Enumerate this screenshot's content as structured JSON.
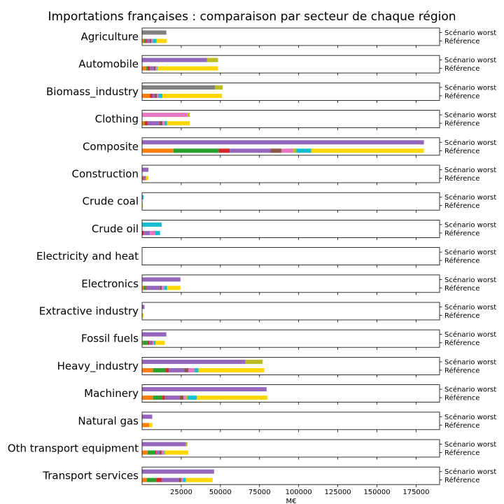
{
  "chart_data": {
    "type": "bar",
    "orientation": "horizontal-stacked",
    "title": "Importations françaises : comparaison par secteur de chaque région",
    "xlabel": "M€",
    "xlim": [
      0,
      190000
    ],
    "xticks": [
      25000,
      50000,
      75000,
      100000,
      125000,
      150000,
      175000
    ],
    "xtick_labels": [
      "25000",
      "50000",
      "75000",
      "100000",
      "125000",
      "150000",
      "175000"
    ],
    "row_labels": [
      "Scénario worst",
      "Référence"
    ],
    "region_colors": [
      "#1f77b4",
      "#ff7f0e",
      "#2ca02c",
      "#d62728",
      "#9467bd",
      "#8c564b",
      "#e377c2",
      "#7f7f7f",
      "#bcbd22",
      "#17becf",
      "#ffd700"
    ],
    "sectors": [
      {
        "name": "Agriculture",
        "worst": [
          0,
          0,
          0,
          0,
          0,
          0,
          0,
          15500,
          0,
          0,
          0
        ],
        "reference": [
          0,
          1000,
          1200,
          800,
          1800,
          1000,
          1000,
          0,
          0,
          2500,
          6500
        ]
      },
      {
        "name": "Automobile",
        "worst": [
          0,
          0,
          0,
          0,
          41500,
          0,
          0,
          0,
          7000,
          0,
          0
        ],
        "reference": [
          0,
          2500,
          1000,
          1500,
          2500,
          1000,
          1000,
          0,
          0,
          500,
          38500
        ]
      },
      {
        "name": "Biomass_industry",
        "worst": [
          0,
          0,
          0,
          0,
          0,
          0,
          0,
          46500,
          5000,
          0,
          0
        ],
        "reference": [
          0,
          5000,
          0,
          1500,
          1500,
          1500,
          1000,
          0,
          0,
          2500,
          38000
        ]
      },
      {
        "name": "Clothing",
        "worst": [
          0,
          0,
          0,
          0,
          0,
          0,
          29000,
          0,
          1500,
          0,
          0
        ],
        "reference": [
          0,
          1500,
          500,
          1500,
          7500,
          2000,
          1500,
          0,
          0,
          1500,
          14500
        ]
      },
      {
        "name": "Composite",
        "worst": [
          0,
          0,
          0,
          0,
          180000,
          0,
          0,
          0,
          0,
          0,
          0
        ],
        "reference": [
          0,
          20000,
          29000,
          7000,
          26000,
          7000,
          7500,
          0,
          2000,
          9500,
          72000
        ]
      },
      {
        "name": "Construction",
        "worst": [
          0,
          0,
          0,
          0,
          4000,
          0,
          0,
          0,
          0,
          0,
          0
        ],
        "reference": [
          0,
          500,
          0,
          500,
          1500,
          0,
          0,
          0,
          0,
          0,
          1500
        ]
      },
      {
        "name": "Crude coal",
        "worst": [
          0,
          0,
          0,
          0,
          0,
          0,
          0,
          0,
          0,
          1000,
          0
        ],
        "reference": [
          0,
          0,
          0,
          0,
          0,
          0,
          0,
          0,
          0,
          0,
          500
        ]
      },
      {
        "name": "Crude oil",
        "worst": [
          0,
          0,
          0,
          0,
          0,
          0,
          0,
          0,
          0,
          12500,
          0
        ],
        "reference": [
          0,
          0,
          0,
          1000,
          4000,
          0,
          3500,
          0,
          0,
          3000,
          0
        ]
      },
      {
        "name": "Electricity and heat",
        "worst": [
          0,
          0,
          0,
          0,
          0,
          0,
          0,
          0,
          0,
          0,
          0
        ],
        "reference": [
          0,
          0,
          0,
          0,
          0,
          0,
          0,
          0,
          0,
          0,
          0
        ]
      },
      {
        "name": "Electronics",
        "worst": [
          0,
          0,
          0,
          0,
          24500,
          0,
          0,
          0,
          0,
          0,
          0
        ],
        "reference": [
          0,
          1000,
          1500,
          500,
          8500,
          1000,
          1500,
          0,
          0,
          2000,
          8500
        ]
      },
      {
        "name": "Extractive industry",
        "worst": [
          0,
          0,
          0,
          0,
          1500,
          0,
          0,
          0,
          0,
          0,
          0
        ],
        "reference": [
          0,
          0,
          0,
          0,
          0,
          0,
          0,
          0,
          500,
          0,
          500
        ]
      },
      {
        "name": "Fossil fuels",
        "worst": [
          0,
          0,
          0,
          0,
          15500,
          0,
          0,
          0,
          0,
          0,
          0
        ],
        "reference": [
          0,
          500,
          3000,
          1000,
          1500,
          500,
          1000,
          0,
          0,
          1000,
          6000
        ]
      },
      {
        "name": "Heavy_industry",
        "worst": [
          0,
          0,
          0,
          0,
          66000,
          0,
          0,
          0,
          11000,
          0,
          0
        ],
        "reference": [
          0,
          7000,
          8000,
          2000,
          10000,
          2500,
          4000,
          0,
          0,
          2500,
          42000
        ]
      },
      {
        "name": "Machinery",
        "worst": [
          0,
          0,
          0,
          0,
          79500,
          0,
          0,
          0,
          0,
          0,
          0
        ],
        "reference": [
          0,
          7000,
          6000,
          1500,
          9500,
          2500,
          1500,
          0,
          1000,
          6000,
          45000
        ]
      },
      {
        "name": "Natural gas",
        "worst": [
          0,
          0,
          0,
          0,
          6500,
          0,
          0,
          0,
          0,
          0,
          0
        ],
        "reference": [
          0,
          4500,
          0,
          0,
          0,
          0,
          0,
          0,
          0,
          0,
          2000
        ]
      },
      {
        "name": "Oth transport equipment",
        "worst": [
          0,
          0,
          0,
          0,
          28000,
          0,
          0,
          0,
          1000,
          0,
          0
        ],
        "reference": [
          0,
          3500,
          5000,
          500,
          2000,
          1500,
          1500,
          0,
          0,
          500,
          15000
        ]
      },
      {
        "name": "Transport services",
        "worst": [
          0,
          0,
          0,
          0,
          46000,
          0,
          0,
          0,
          0,
          0,
          0
        ],
        "reference": [
          0,
          3000,
          6000,
          3500,
          11000,
          1500,
          1000,
          0,
          0,
          2000,
          17000
        ]
      }
    ]
  }
}
